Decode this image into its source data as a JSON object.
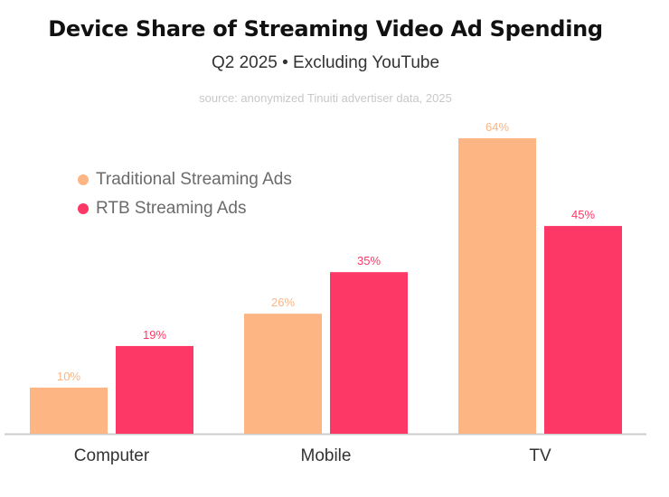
{
  "header": {
    "title": "Device Share of Streaming Video Ad Spending",
    "subtitle": "Q2 2025 • Excluding YouTube",
    "source": "source: anonymized Tinuiti advertiser data, 2025"
  },
  "colors": {
    "traditional": "#fdb584",
    "rtb": "#fe3866",
    "axis": "#cccccc"
  },
  "chart_data": {
    "type": "bar",
    "title": "Device Share of Streaming Video Ad Spending",
    "subtitle": "Q2 2025 • Excluding YouTube",
    "xlabel": "",
    "ylabel": "",
    "ylim": [
      0,
      64
    ],
    "grid": false,
    "legend_position": "top-left",
    "value_suffix": "%",
    "categories": [
      "Computer",
      "Mobile",
      "TV"
    ],
    "series": [
      {
        "name": "Traditional Streaming Ads",
        "values": [
          10,
          26,
          64
        ],
        "color": "#fdb584"
      },
      {
        "name": "RTB Streaming Ads",
        "values": [
          19,
          35,
          45
        ],
        "color": "#fe3866"
      }
    ]
  }
}
